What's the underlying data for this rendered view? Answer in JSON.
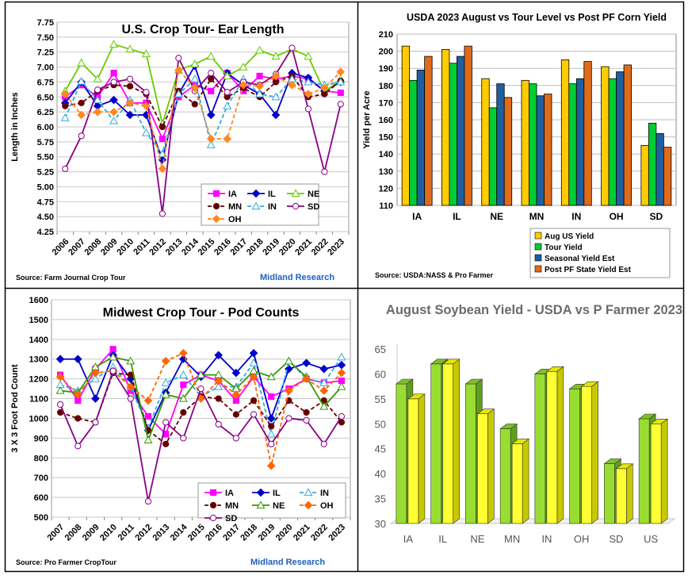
{
  "chart_data": [
    {
      "type": "line",
      "title": "U.S. Crop Tour- Ear Length",
      "ylabel": "Length in Inches",
      "xlabel": "",
      "ylim": [
        4.25,
        7.75
      ],
      "yticks": [
        "4.25",
        "4.50",
        "4.75",
        "5.00",
        "5.25",
        "5.50",
        "5.75",
        "6.00",
        "6.25",
        "6.50",
        "6.75",
        "7.00",
        "7.25",
        "7.50",
        "7.75"
      ],
      "x": [
        "2006",
        "2007",
        "2008",
        "2009",
        "2010",
        "2011",
        "2012",
        "2013",
        "2014",
        "2015",
        "2016",
        "2017",
        "2018",
        "2019",
        "2020",
        "2021",
        "2022",
        "2023"
      ],
      "grid": true,
      "legend_position": "bottom-right",
      "series": [
        {
          "name": "IA",
          "color": "#ff00ff",
          "marker": "square",
          "dash": "solid",
          "values": [
            6.5,
            6.7,
            6.5,
            6.9,
            6.4,
            6.4,
            5.8,
            6.5,
            6.7,
            6.6,
            6.9,
            6.6,
            6.85,
            6.8,
            6.85,
            6.8,
            6.6,
            6.57
          ]
        },
        {
          "name": "IL",
          "color": "#0000cc",
          "marker": "diamond",
          "dash": "solid",
          "values": [
            6.4,
            6.75,
            6.35,
            6.45,
            6.2,
            6.2,
            5.45,
            6.55,
            7.02,
            6.2,
            6.9,
            6.7,
            6.55,
            6.2,
            6.9,
            6.82,
            6.6,
            6.75
          ]
        },
        {
          "name": "NE",
          "color": "#66cc00",
          "marker": "triangle",
          "dash": "solid",
          "values": [
            6.6,
            7.07,
            6.8,
            7.38,
            7.3,
            7.22,
            6.05,
            6.95,
            7.05,
            7.18,
            6.85,
            7.0,
            7.28,
            7.18,
            7.3,
            7.18,
            6.58,
            6.8
          ]
        },
        {
          "name": "MN",
          "color": "#660000",
          "marker": "circle",
          "dash": "dash",
          "values": [
            6.35,
            6.4,
            6.6,
            6.7,
            6.68,
            6.55,
            6.0,
            6.6,
            6.38,
            6.8,
            6.5,
            6.65,
            6.5,
            6.75,
            6.85,
            6.5,
            6.55,
            6.77
          ]
        },
        {
          "name": "IN",
          "color": "#33aadd",
          "marker": "triangle",
          "dash": "dash",
          "values": [
            6.15,
            6.76,
            6.45,
            6.1,
            6.45,
            5.9,
            5.55,
            6.55,
            6.8,
            5.7,
            6.35,
            6.8,
            6.55,
            6.5,
            6.8,
            6.75,
            6.7,
            6.75
          ]
        },
        {
          "name": "SD",
          "color": "#880088",
          "marker": "circle",
          "dash": "solid",
          "values": [
            5.3,
            5.85,
            6.62,
            6.75,
            6.8,
            6.58,
            4.55,
            7.15,
            6.6,
            6.9,
            6.58,
            6.75,
            6.7,
            6.88,
            7.32,
            6.3,
            5.25,
            6.38
          ]
        },
        {
          "name": "OH",
          "color": "#ff8822",
          "marker": "diamond",
          "dash": "dash",
          "values": [
            6.55,
            6.2,
            6.25,
            6.25,
            6.4,
            6.35,
            5.3,
            6.95,
            6.65,
            5.8,
            5.8,
            6.7,
            6.68,
            6.85,
            6.7,
            6.55,
            6.65,
            6.92
          ]
        }
      ],
      "source": "Source: Farm Journal Crop Tour",
      "credit": "Midland Research"
    },
    {
      "type": "bar",
      "title": "USDA 2023 August vs Tour Level vs Post PF Corn Yield",
      "ylabel": "Yield per Acre",
      "xlabel": "",
      "ylim": [
        110,
        210
      ],
      "yticks": [
        "110",
        "120",
        "130",
        "140",
        "150",
        "160",
        "170",
        "180",
        "190",
        "200",
        "210"
      ],
      "categories": [
        "IA",
        "IL",
        "NE",
        "MN",
        "IN",
        "OH",
        "SD"
      ],
      "grid": true,
      "legend_position": "bottom-right",
      "series": [
        {
          "name": "Aug US Yield",
          "color": "#ffcc00",
          "values": [
            203,
            201,
            184,
            183,
            195,
            191,
            145
          ]
        },
        {
          "name": "Tour Yield",
          "color": "#00cc33",
          "values": [
            183,
            193,
            167,
            181,
            181,
            184,
            158
          ]
        },
        {
          "name": "Seasonal Yield Est",
          "color": "#1f5fa0",
          "values": [
            189,
            197,
            181,
            174,
            184,
            188,
            152
          ]
        },
        {
          "name": "Post PF State Yield Est",
          "color": "#e06b1a",
          "values": [
            197,
            203,
            173,
            175,
            194,
            192,
            144
          ]
        }
      ],
      "source": "Source: USDA:NASS & Pro Farmer"
    },
    {
      "type": "line",
      "title": "Midwest Crop Tour - Pod Counts",
      "ylabel": "3 X 3 Foot Pod Count",
      "xlabel": "",
      "ylim": [
        500,
        1600
      ],
      "yticks": [
        "500",
        "600",
        "700",
        "800",
        "900",
        "1000",
        "1100",
        "1200",
        "1300",
        "1400",
        "1500",
        "1600"
      ],
      "x": [
        "2007",
        "2008",
        "2009",
        "2010",
        "2011",
        "2012",
        "2013",
        "2014",
        "2015",
        "2016",
        "2017",
        "2018",
        "2019",
        "2020",
        "2021",
        "2022",
        "2023"
      ],
      "grid": true,
      "legend_position": "bottom",
      "series": [
        {
          "name": "IA",
          "color": "#ff00ff",
          "marker": "square",
          "dash": "solid",
          "values": [
            1220,
            1090,
            1250,
            1350,
            1140,
            1010,
            920,
            1170,
            1220,
            1190,
            1090,
            1210,
            1110,
            1150,
            1200,
            1180,
            1190
          ]
        },
        {
          "name": "IL",
          "color": "#0000cc",
          "marker": "diamond",
          "dash": "solid",
          "values": [
            1300,
            1300,
            1100,
            1320,
            1200,
            940,
            1130,
            1300,
            1210,
            1320,
            1230,
            1330,
            1000,
            1250,
            1280,
            1250,
            1270
          ]
        },
        {
          "name": "IN",
          "color": "#33aadd",
          "marker": "triangle",
          "dash": "dash",
          "values": [
            1170,
            1140,
            1200,
            1260,
            1160,
            950,
            1180,
            1220,
            1110,
            1160,
            1160,
            1280,
            920,
            1290,
            1200,
            1180,
            1310
          ]
        },
        {
          "name": "MN",
          "color": "#660000",
          "marker": "circle",
          "dash": "dash",
          "values": [
            1030,
            1000,
            980,
            1230,
            1220,
            940,
            870,
            1030,
            1110,
            1100,
            1020,
            1090,
            960,
            1090,
            1030,
            1090,
            980
          ]
        },
        {
          "name": "NE",
          "color": "#339900",
          "marker": "triangle",
          "dash": "solid",
          "values": [
            1140,
            1130,
            1260,
            1310,
            1290,
            890,
            1120,
            1100,
            1220,
            1220,
            1150,
            1240,
            1210,
            1290,
            1210,
            1060,
            1160
          ]
        },
        {
          "name": "OH",
          "color": "#ff6600",
          "marker": "diamond",
          "dash": "dash",
          "values": [
            1210,
            1120,
            1230,
            1240,
            1160,
            1090,
            1290,
            1330,
            1100,
            1190,
            1120,
            1210,
            760,
            1140,
            1200,
            1140,
            1230
          ]
        },
        {
          "name": "SD",
          "color": "#880088",
          "marker": "circle",
          "dash": "solid",
          "values": [
            1070,
            860,
            980,
            1240,
            1100,
            580,
            980,
            900,
            1150,
            970,
            900,
            1020,
            870,
            1000,
            990,
            870,
            1010
          ]
        }
      ],
      "source": "Source: Pro Farmer CropTour",
      "credit": "Midland Research"
    },
    {
      "type": "bar",
      "title": "August Soybean Yield - USDA vs P Farmer 2023",
      "ylabel": "",
      "xlabel": "",
      "ylim": [
        30,
        65
      ],
      "yticks": [
        "30",
        "35",
        "40",
        "45",
        "50",
        "55",
        "60",
        "65"
      ],
      "categories": [
        "IA",
        "IL",
        "NE",
        "MN",
        "IN",
        "OH",
        "SD",
        "US"
      ],
      "grid": false,
      "series": [
        {
          "color": "#99dd33",
          "values": [
            58,
            62,
            58,
            49,
            60,
            57,
            42,
            51
          ]
        },
        {
          "color": "#ffff33",
          "values": [
            55,
            62,
            52,
            46,
            60.5,
            57.5,
            41,
            50
          ]
        }
      ]
    }
  ]
}
